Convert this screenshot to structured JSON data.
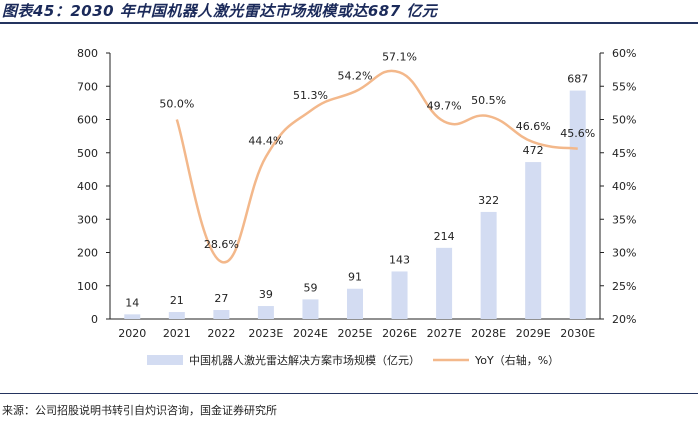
{
  "header": {
    "title": "图表45：2030 年中国机器人激光雷达市场规模或达687 亿元"
  },
  "footer": {
    "source": "来源：公司招股说明书转引自灼识咨询，国金证券研究所"
  },
  "chart_data": {
    "type": "bar",
    "categories": [
      "2020",
      "2021",
      "2022",
      "2023E",
      "2024E",
      "2025E",
      "2026E",
      "2027E",
      "2028E",
      "2029E",
      "2030E"
    ],
    "series": [
      {
        "name": "中国机器人激光雷达解决方案市场规模（亿元）",
        "type": "bar",
        "axis": "left",
        "values": [
          14,
          21,
          27,
          39,
          59,
          91,
          143,
          214,
          322,
          472,
          687
        ],
        "labels": [
          "14",
          "21",
          "27",
          "39",
          "59",
          "91",
          "143",
          "214",
          "322",
          "472",
          "687"
        ],
        "color": "#d3dcf2"
      },
      {
        "name": "YoY（右轴，%）",
        "type": "line",
        "axis": "right",
        "values": [
          null,
          50.0,
          28.6,
          44.4,
          51.3,
          54.2,
          57.1,
          49.7,
          50.5,
          46.6,
          45.6
        ],
        "labels": [
          "",
          "50.0%",
          "28.6%",
          "44.4%",
          "51.3%",
          "54.2%",
          "57.1%",
          "49.7%",
          "50.5%",
          "46.6%",
          "45.6%"
        ],
        "color": "#f3b88b"
      }
    ],
    "y_left": {
      "range": [
        0,
        800
      ],
      "ticks": [
        "0",
        "100",
        "200",
        "300",
        "400",
        "500",
        "600",
        "700",
        "800"
      ]
    },
    "y_right": {
      "range": [
        20,
        60
      ],
      "ticks": [
        "20%",
        "25%",
        "30%",
        "35%",
        "40%",
        "45%",
        "50%",
        "55%",
        "60%"
      ]
    },
    "grid": false,
    "legend": "bottom"
  }
}
